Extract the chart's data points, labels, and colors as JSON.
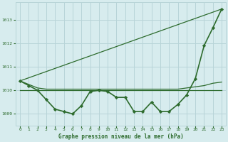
{
  "background_color": "#d7ecee",
  "grid_color": "#b8d4d8",
  "line_color": "#2d6b2d",
  "title": "Graphe pression niveau de la mer (hPa)",
  "xlim": [
    -0.5,
    23.5
  ],
  "ylim": [
    1008.5,
    1013.75
  ],
  "yticks": [
    1009,
    1010,
    1011,
    1012,
    1013
  ],
  "xticks": [
    0,
    1,
    2,
    3,
    4,
    5,
    6,
    7,
    8,
    9,
    10,
    11,
    12,
    13,
    14,
    15,
    16,
    17,
    18,
    19,
    20,
    21,
    22,
    23
  ],
  "series": [
    {
      "x": [
        0,
        1,
        2,
        3,
        4,
        5,
        6,
        7,
        8,
        9,
        10,
        11,
        12,
        13,
        14,
        15,
        16,
        17,
        18,
        19,
        20,
        21,
        22,
        23
      ],
      "y": [
        1010.4,
        1010.2,
        1010.0,
        1009.6,
        1009.2,
        1009.1,
        1009.0,
        1009.35,
        1009.95,
        1010.0,
        1009.95,
        1009.7,
        1009.7,
        1009.1,
        1009.1,
        1009.5,
        1009.1,
        1009.1,
        1009.4,
        1009.8,
        1010.5,
        1011.9,
        1012.65,
        1013.45
      ],
      "lw": 1.2,
      "marker": true
    },
    {
      "x": [
        0,
        1,
        2,
        3,
        4,
        5,
        6,
        7,
        8,
        9,
        10,
        11,
        12,
        13,
        14,
        15,
        16,
        17,
        18,
        19,
        20,
        21,
        22,
        23
      ],
      "y": [
        1010.4,
        1010.25,
        1010.1,
        1010.05,
        1010.05,
        1010.05,
        1010.05,
        1010.05,
        1010.05,
        1010.05,
        1010.05,
        1010.05,
        1010.05,
        1010.05,
        1010.05,
        1010.05,
        1010.05,
        1010.05,
        1010.05,
        1010.1,
        1010.15,
        1010.2,
        1010.3,
        1010.35
      ],
      "lw": 0.9,
      "marker": false
    },
    {
      "x": [
        0,
        23
      ],
      "y": [
        1010.0,
        1010.0
      ],
      "lw": 0.9,
      "marker": false
    },
    {
      "x": [
        0,
        23
      ],
      "y": [
        1010.4,
        1013.45
      ],
      "lw": 0.9,
      "marker": false
    }
  ]
}
